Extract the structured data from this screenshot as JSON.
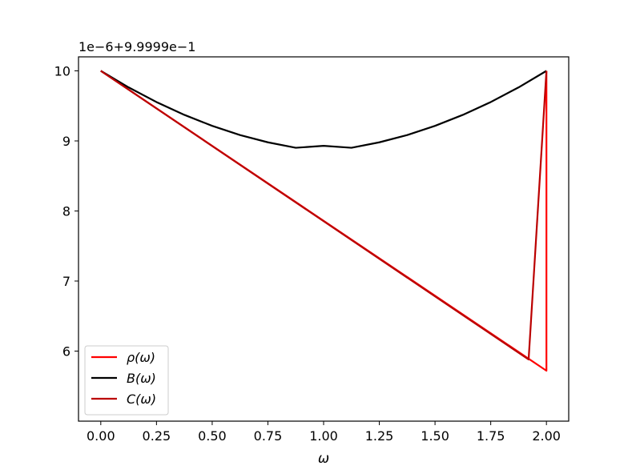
{
  "chart_data": {
    "type": "line",
    "title": "",
    "xlabel": "ω",
    "ylabel": "",
    "offset_label": "1e−6+9.9999e−1",
    "xlim": [
      -0.1,
      2.1
    ],
    "ylim": [
      5.0,
      10.2
    ],
    "grid": false,
    "legend_position": "lower-left",
    "x_ticks": [
      0.0,
      0.25,
      0.5,
      0.75,
      1.0,
      1.25,
      1.5,
      1.75,
      2.0
    ],
    "x_tick_labels": [
      "0.00",
      "0.25",
      "0.50",
      "0.75",
      "1.00",
      "1.25",
      "1.50",
      "1.75",
      "2.00"
    ],
    "y_ticks": [
      6,
      7,
      8,
      9,
      10
    ],
    "y_tick_labels": [
      "6",
      "7",
      "8",
      "9",
      "10"
    ],
    "series": [
      {
        "name": "ρ(ω)",
        "legend_label": "ρ(ω)",
        "color": "#ff0000",
        "x": [
          0.0,
          2.0,
          2.0
        ],
        "y": [
          10.0,
          5.72,
          10.0
        ]
      },
      {
        "name": "B(ω)",
        "legend_label": "B(ω)",
        "color": "#000000",
        "x": [
          0.0,
          0.125,
          0.25,
          0.375,
          0.5,
          0.625,
          0.75,
          0.875,
          1.0,
          1.125,
          1.25,
          1.375,
          1.5,
          1.625,
          1.75,
          1.875,
          2.0
        ],
        "y": [
          10.0,
          9.764,
          9.555,
          9.372,
          9.215,
          9.084,
          8.98,
          8.902,
          8.93,
          8.902,
          8.98,
          9.084,
          9.215,
          9.372,
          9.555,
          9.764,
          10.0
        ]
      },
      {
        "name": "C(ω)",
        "legend_label": "C(ω)",
        "color": "#bb0000",
        "x": [
          0.0,
          1.92,
          2.0
        ],
        "y": [
          10.0,
          5.88,
          10.0
        ]
      }
    ]
  }
}
